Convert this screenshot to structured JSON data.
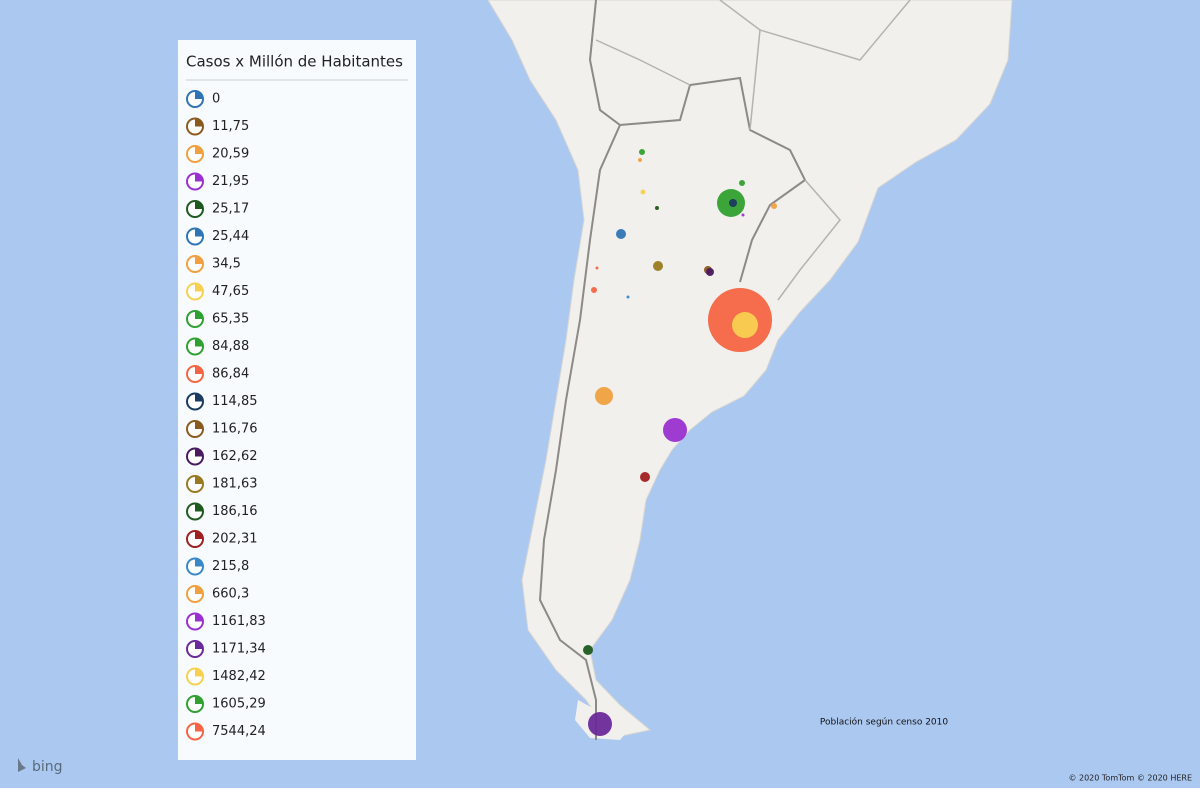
{
  "legend": {
    "title": "Casos x Millón de Habitantes",
    "items": [
      {
        "label": "0",
        "color": "#2f75b5"
      },
      {
        "label": "11,75",
        "color": "#8b5a1e"
      },
      {
        "label": "20,59",
        "color": "#f0a040"
      },
      {
        "label": "21,95",
        "color": "#9b30d0"
      },
      {
        "label": "25,17",
        "color": "#1e5a1e"
      },
      {
        "label": "25,44",
        "color": "#2f75b5"
      },
      {
        "label": "34,5",
        "color": "#f0a040"
      },
      {
        "label": "47,65",
        "color": "#f8d050"
      },
      {
        "label": "65,35",
        "color": "#30a030"
      },
      {
        "label": "84,88",
        "color": "#30a030"
      },
      {
        "label": "86,84",
        "color": "#f56545"
      },
      {
        "label": "114,85",
        "color": "#1a3a60"
      },
      {
        "label": "116,76",
        "color": "#8b5a1e"
      },
      {
        "label": "162,62",
        "color": "#4a1a60"
      },
      {
        "label": "181,63",
        "color": "#9a7a20"
      },
      {
        "label": "186,16",
        "color": "#1e5a1e"
      },
      {
        "label": "202,31",
        "color": "#a02020"
      },
      {
        "label": "215,8",
        "color": "#3a88c8"
      },
      {
        "label": "660,3",
        "color": "#f0a040"
      },
      {
        "label": "1161,83",
        "color": "#9b30d0"
      },
      {
        "label": "1171,34",
        "color": "#6a2a9a"
      },
      {
        "label": "1482,42",
        "color": "#f8d050"
      },
      {
        "label": "1605,29",
        "color": "#30a030"
      },
      {
        "label": "7544,24",
        "color": "#f56545"
      }
    ]
  },
  "map": {
    "note": "Población según censo 2010",
    "attribution": "© 2020 TomTom © 2020 HERE",
    "logo": "bing"
  }
}
